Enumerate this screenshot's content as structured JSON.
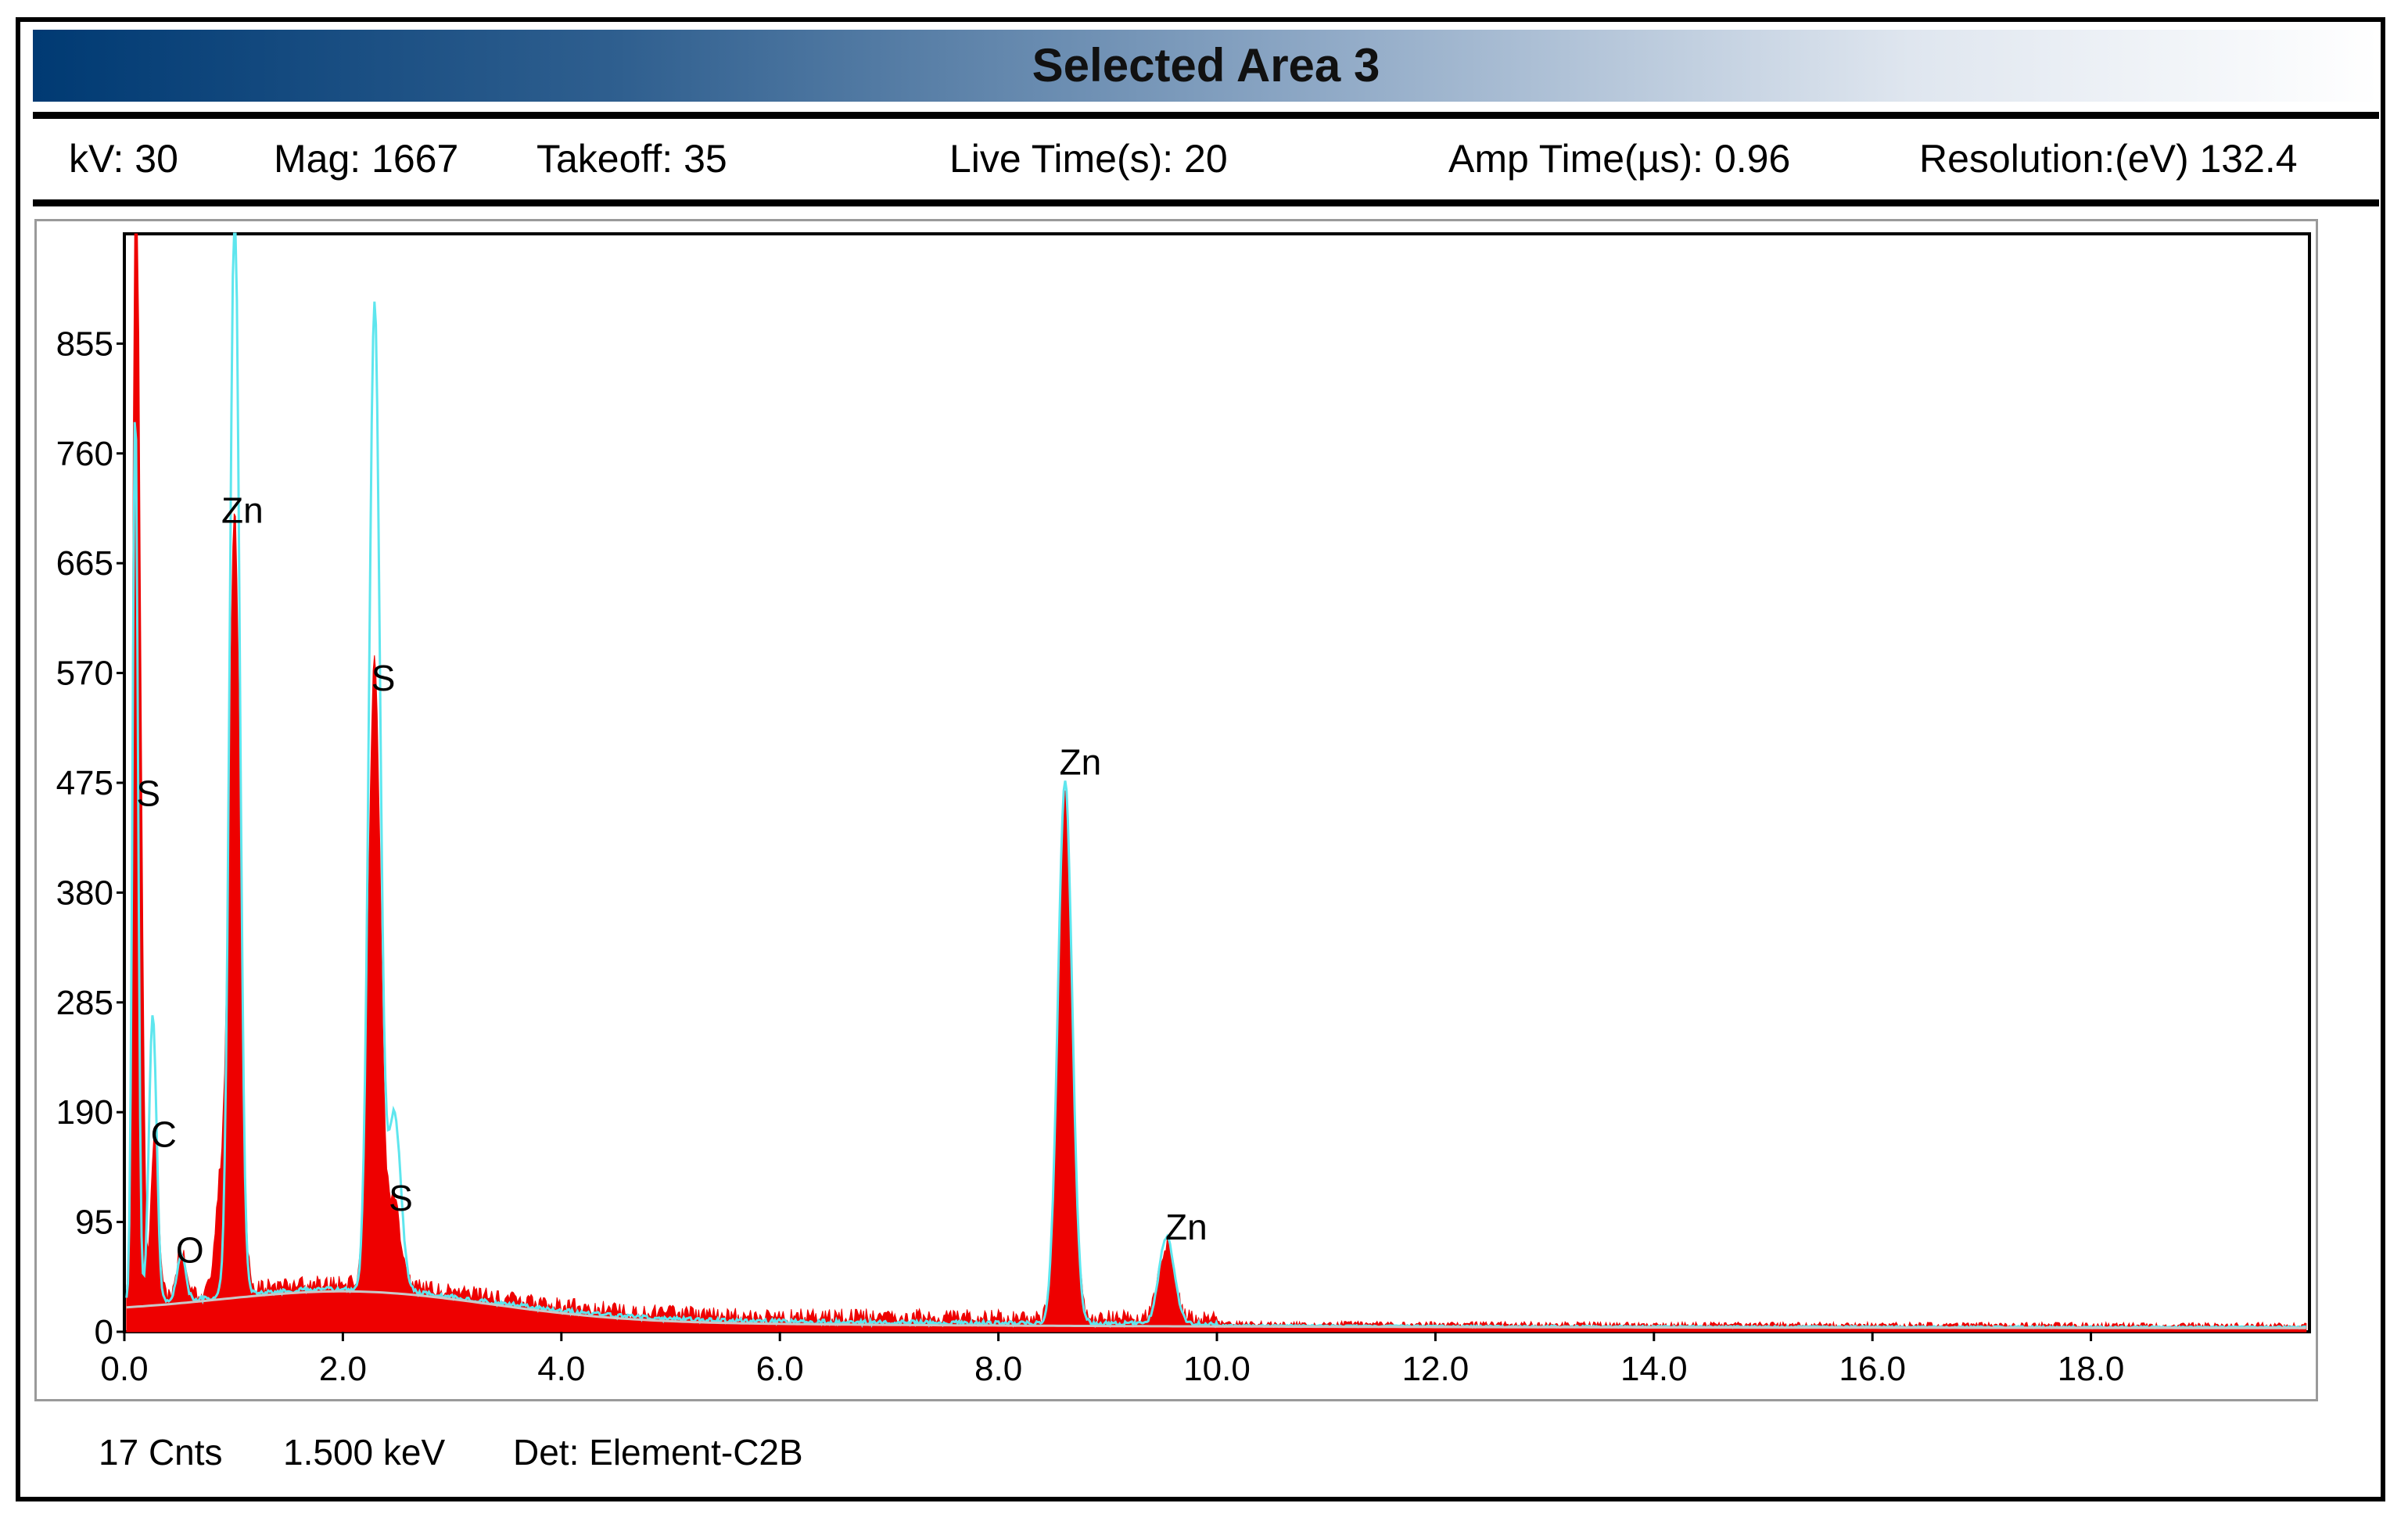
{
  "header": {
    "title": "Selected Area 3",
    "gradient_start": "#003a73",
    "gradient_end": "#ffffff"
  },
  "info": {
    "kv": "kV: 30",
    "mag": "Mag: 1667",
    "takeoff": "Takeoff: 35",
    "live_time": "Live Time(s): 20",
    "amp_time": "Amp Time(µs): 0.96",
    "resolution": "Resolution:(eV) 132.4"
  },
  "status": {
    "counts": "17 Cnts",
    "energy": "1.500 keV",
    "detector": "Det: Element-C2B"
  },
  "chart_data": {
    "type": "area",
    "title": "",
    "xlabel": "",
    "ylabel": "",
    "xlim": [
      0,
      20
    ],
    "ylim": [
      0,
      950
    ],
    "x_ticks": [
      "0.0",
      "2.0",
      "4.0",
      "6.0",
      "8.0",
      "10.0",
      "12.0",
      "14.0",
      "16.0",
      "18.0"
    ],
    "x_tick_values": [
      0,
      2,
      4,
      6,
      8,
      10,
      12,
      14,
      16,
      18
    ],
    "y_ticks": [
      "0",
      "95",
      "190",
      "285",
      "380",
      "475",
      "570",
      "665",
      "760",
      "855"
    ],
    "y_tick_values": [
      0,
      95,
      190,
      285,
      380,
      475,
      570,
      665,
      760,
      855
    ],
    "grid": false,
    "series": [
      {
        "color": "#ee0000",
        "peaks": [
          {
            "x": 0.1,
            "y": 865,
            "sigma": 0.025
          },
          {
            "x": 0.14,
            "y": 470,
            "sigma": 0.03
          },
          {
            "x": 0.28,
            "y": 140,
            "sigma": 0.035
          },
          {
            "x": 0.52,
            "y": 40,
            "sigma": 0.04
          },
          {
            "x": 0.88,
            "y": 90,
            "sigma": 0.05
          },
          {
            "x": 1.01,
            "y": 670,
            "sigma": 0.05
          },
          {
            "x": 2.29,
            "y": 540,
            "sigma": 0.055
          },
          {
            "x": 2.47,
            "y": 70,
            "sigma": 0.06
          },
          {
            "x": 8.61,
            "y": 450,
            "sigma": 0.065
          },
          {
            "x": 9.54,
            "y": 65,
            "sigma": 0.07
          }
        ]
      },
      {
        "color": "#5ee6ee",
        "peaks": [
          {
            "x": 0.1,
            "y": 780,
            "sigma": 0.025
          },
          {
            "x": 0.26,
            "y": 250,
            "sigma": 0.035
          },
          {
            "x": 0.52,
            "y": 40,
            "sigma": 0.04
          },
          {
            "x": 1.01,
            "y": 950,
            "sigma": 0.045
          },
          {
            "x": 2.29,
            "y": 855,
            "sigma": 0.05
          },
          {
            "x": 2.47,
            "y": 155,
            "sigma": 0.06
          },
          {
            "x": 8.61,
            "y": 470,
            "sigma": 0.065
          },
          {
            "x": 9.54,
            "y": 75,
            "sigma": 0.07
          }
        ]
      }
    ],
    "annotations": [
      {
        "label": "S",
        "x": 0.22,
        "y": 455
      },
      {
        "label": "C",
        "x": 0.36,
        "y": 160
      },
      {
        "label": "O",
        "x": 0.6,
        "y": 60
      },
      {
        "label": "Zn",
        "x": 1.08,
        "y": 700
      },
      {
        "label": "S",
        "x": 2.37,
        "y": 555
      },
      {
        "label": "S",
        "x": 2.53,
        "y": 105
      },
      {
        "label": "Zn",
        "x": 8.75,
        "y": 482
      },
      {
        "label": "Zn",
        "x": 9.72,
        "y": 80
      }
    ]
  }
}
